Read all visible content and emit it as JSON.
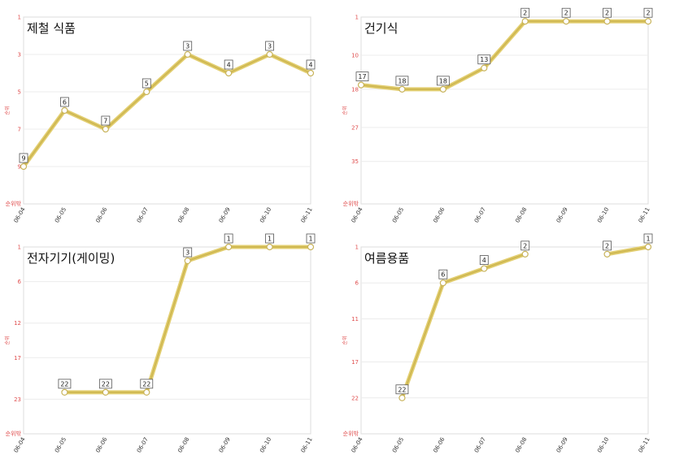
{
  "colors": {
    "line": "#e3cf72",
    "line_highlight": "#c9b24a",
    "marker_edge": "#c8b35a",
    "tick_text": "#e05050"
  },
  "chart_data": [
    {
      "type": "line",
      "title": "제철 식품",
      "ylabel": "순위",
      "y_bottom_label": "순위밖",
      "y_inverted": true,
      "yticks": [
        1,
        3,
        5,
        7,
        9
      ],
      "ylim": [
        1,
        11
      ],
      "grid": true,
      "x": [
        "06-04",
        "06-05",
        "06-06",
        "06-07",
        "06-08",
        "06-09",
        "06-10",
        "06-11"
      ],
      "series": [
        {
          "values": [
            9,
            6,
            7,
            5,
            3,
            4,
            3,
            4
          ]
        }
      ]
    },
    {
      "type": "line",
      "title": "건기식",
      "ylabel": "순위",
      "y_bottom_label": "순위밖",
      "y_inverted": true,
      "yticks": [
        1,
        10,
        18,
        27,
        35
      ],
      "ylim": [
        1,
        45
      ],
      "grid": true,
      "x": [
        "06-04",
        "06-05",
        "06-06",
        "06-07",
        "06-08",
        "06-09",
        "06-10",
        "06-11"
      ],
      "series": [
        {
          "values": [
            17,
            18,
            18,
            13,
            2,
            2,
            2,
            2
          ]
        }
      ]
    },
    {
      "type": "line",
      "title": "전자기기(게이밍)",
      "ylabel": "순위",
      "y_bottom_label": "순위밖",
      "y_inverted": true,
      "yticks": [
        1,
        6,
        12,
        17,
        23
      ],
      "ylim": [
        1,
        28
      ],
      "grid": true,
      "x": [
        "06-04",
        "06-05",
        "06-06",
        "06-07",
        "06-08",
        "06-09",
        "06-10",
        "06-11"
      ],
      "series": [
        {
          "values": [
            null,
            22,
            22,
            22,
            3,
            1,
            1,
            1
          ]
        }
      ]
    },
    {
      "type": "line",
      "title": "여름용품",
      "ylabel": "순위",
      "y_bottom_label": "순위밖",
      "y_inverted": true,
      "yticks": [
        1,
        6,
        11,
        17,
        22
      ],
      "ylim": [
        1,
        27
      ],
      "grid": true,
      "x": [
        "06-04",
        "06-05",
        "06-06",
        "06-07",
        "06-08",
        "06-09",
        "06-10",
        "06-11"
      ],
      "series": [
        {
          "values": [
            null,
            22,
            6,
            4,
            2,
            null,
            2,
            1
          ]
        }
      ]
    }
  ]
}
